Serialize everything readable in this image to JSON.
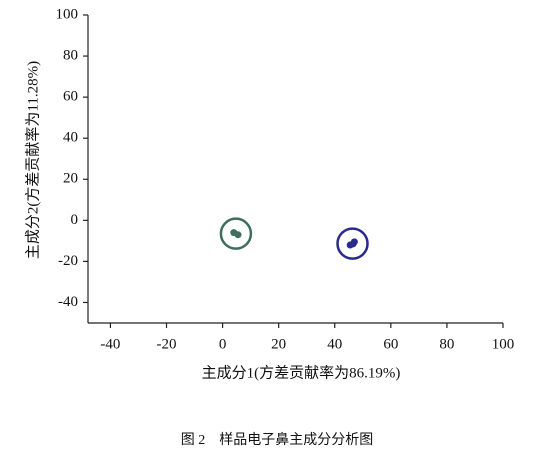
{
  "chart_data": {
    "type": "scatter",
    "xlabel": "主成分1(方差贡献率为86.19%)",
    "ylabel": "主成分2(方差贡献率为11.28%)",
    "caption": "图 2　样品电子鼻主成分分析图",
    "xlim": [
      -48,
      100
    ],
    "xticks": [
      -40,
      -20,
      0,
      20,
      40,
      60,
      80,
      100
    ],
    "ylim": [
      -50,
      100
    ],
    "yticks": [
      -40,
      -20,
      0,
      20,
      40,
      60,
      80,
      100
    ],
    "series": [
      {
        "color": "#3f6e5e",
        "x": [
          4,
          5.5
        ],
        "values": [
          -6,
          -7
        ]
      },
      {
        "color": "#2a2a8a",
        "x": [
          45.5,
          47,
          46.5
        ],
        "values": [
          -12,
          -10.5,
          -11.5
        ]
      }
    ]
  }
}
